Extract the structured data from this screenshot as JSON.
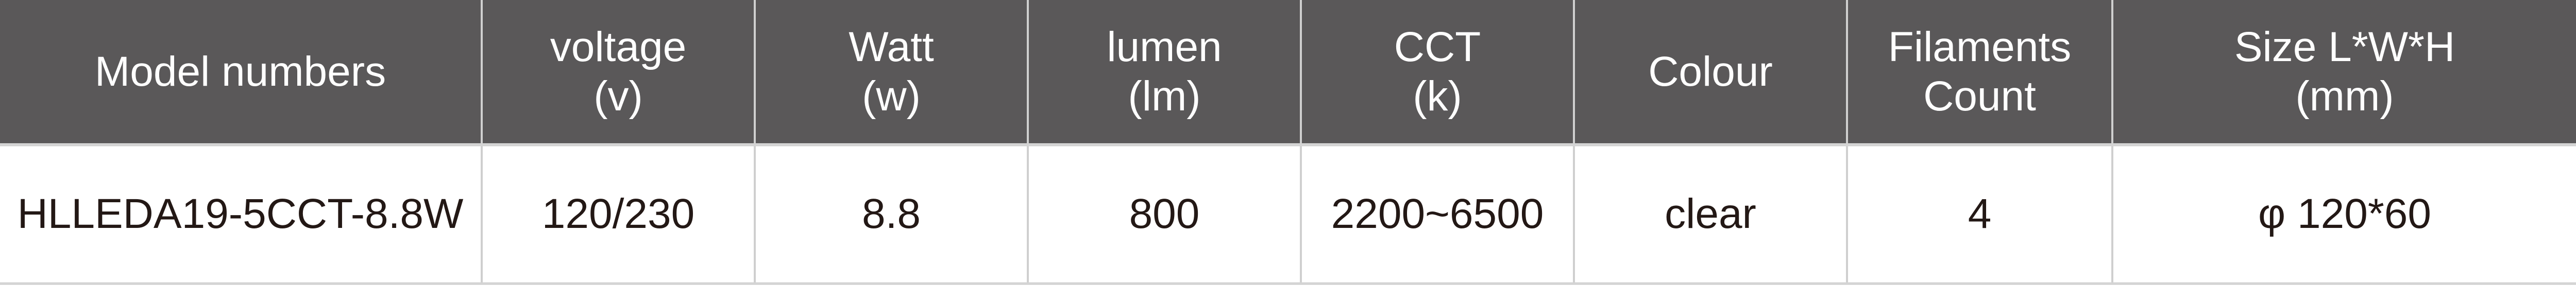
{
  "header": [
    {
      "lines": [
        "Model numbers"
      ]
    },
    {
      "lines": [
        "voltage",
        "(v)"
      ]
    },
    {
      "lines": [
        "Watt",
        "(w)"
      ]
    },
    {
      "lines": [
        "lumen",
        "(lm)"
      ]
    },
    {
      "lines": [
        "CCT",
        "(k)"
      ]
    },
    {
      "lines": [
        "Colour"
      ]
    },
    {
      "lines": [
        "Filaments",
        "Count"
      ]
    },
    {
      "lines": [
        "Size L*W*H",
        "(mm)"
      ]
    }
  ],
  "rows": [
    [
      "HLLEDA19-5CCT-8.8W",
      "120/230",
      "8.8",
      "800",
      "2200~6500",
      "clear",
      "4",
      "φ 120*60"
    ]
  ],
  "colors": {
    "header_bg": "#5a5859",
    "header_text": "#ffffff",
    "cell_text": "#231815",
    "border": "#cfcfcf"
  }
}
